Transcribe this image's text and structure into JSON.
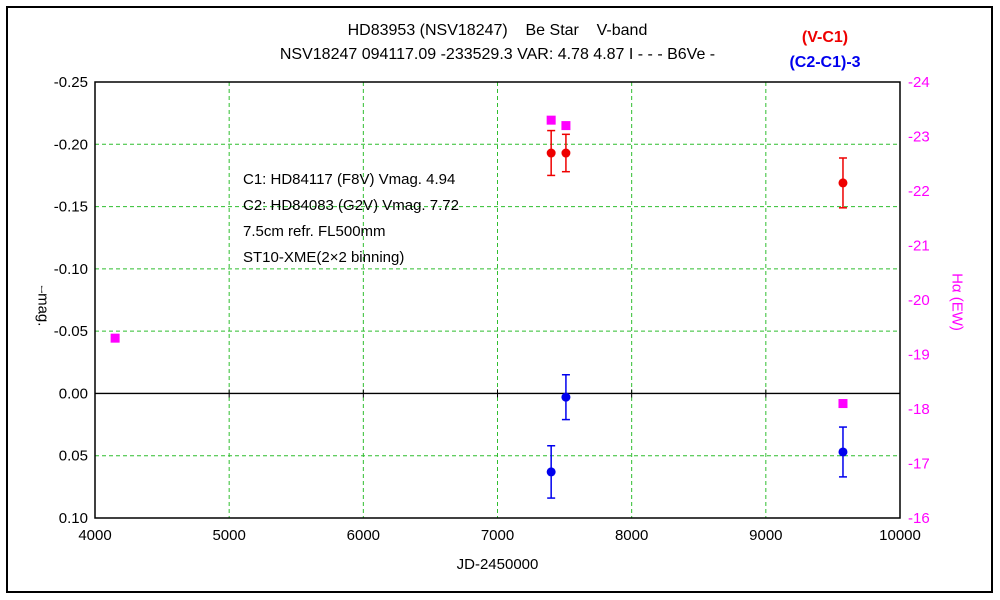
{
  "chart_data": {
    "type": "scatter",
    "title": "HD83953 (NSV18247)    Be Star    V-band",
    "subtitle": "NSV18247 094117.09 -233529.3 VAR: 4.78 4.87 I - - - B6Ve -",
    "xlabel": "JD-2450000",
    "ylabel_left": "⧿mag.",
    "ylabel_right": "Hα (EW)",
    "legend": {
      "item1": "(V-C1)",
      "item2": "(C2-C1)-3"
    },
    "x_range": [
      4000,
      10000
    ],
    "x_ticks": [
      4000,
      5000,
      6000,
      7000,
      8000,
      9000,
      10000
    ],
    "y_left_range": [
      -0.25,
      0.1
    ],
    "y_left_ticks": [
      -0.25,
      -0.2,
      -0.15,
      -0.1,
      -0.05,
      0.0,
      0.05,
      0.1
    ],
    "y_left_orientation": "inverted (negative magnitude at top)",
    "y_right_range": [
      -24,
      -16
    ],
    "y_right_ticks": [
      -24,
      -23,
      -22,
      -21,
      -20,
      -19,
      -18,
      -17,
      -16
    ],
    "grid": {
      "color": "#2fbe2f",
      "style": "dashed",
      "on": true
    },
    "frame_color": "#000000",
    "zero_line": 0.0,
    "series": [
      {
        "id": "v-c1",
        "name": "(V-C1)",
        "color": "#ee0000",
        "marker": "circle",
        "axis": "left",
        "points": [
          {
            "x": 7400,
            "y": -0.193,
            "err": 0.018
          },
          {
            "x": 7510,
            "y": -0.193,
            "err": 0.015
          },
          {
            "x": 9575,
            "y": -0.169,
            "err": 0.02
          }
        ]
      },
      {
        "id": "c2-c1-3",
        "name": "(C2-C1)-3",
        "color": "#0000ee",
        "marker": "circle",
        "axis": "left",
        "points": [
          {
            "x": 7400,
            "y": 0.063,
            "err": 0.021
          },
          {
            "x": 7510,
            "y": 0.003,
            "err": 0.018
          },
          {
            "x": 9575,
            "y": 0.047,
            "err": 0.02
          }
        ]
      },
      {
        "id": "halpha-ew",
        "name": "Hα (EW)",
        "color": "#ff00ff",
        "marker": "square",
        "axis": "right",
        "points": [
          {
            "x": 4150,
            "y": -19.3
          },
          {
            "x": 7400,
            "y": -23.3
          },
          {
            "x": 7510,
            "y": -23.2
          },
          {
            "x": 9575,
            "y": -18.1
          }
        ]
      }
    ],
    "annotations": [
      "C1: HD84117 (F8V) Vmag. 4.94",
      "C2: HD84083 (G2V) Vmag. 7.72",
      "7.5cm refr. FL500mm",
      "ST10-XME(2×2 binning)"
    ]
  }
}
